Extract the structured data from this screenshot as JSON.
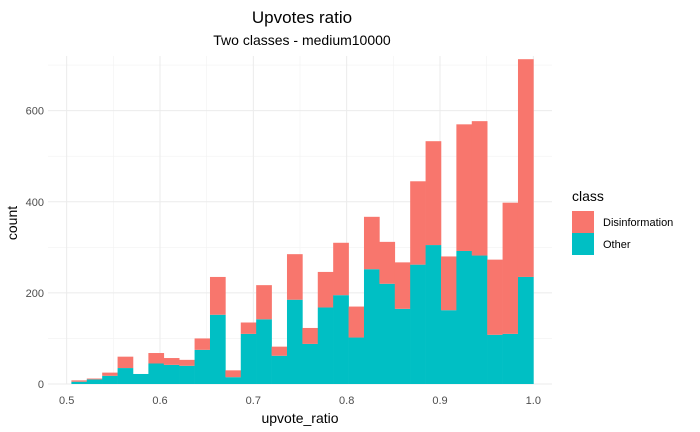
{
  "chart_data": {
    "type": "bar",
    "stacked": true,
    "title": "Upvotes ratio",
    "subtitle": "Two classes - medium10000",
    "xlabel": "upvote_ratio",
    "ylabel": "count",
    "xlim": [
      0.48,
      1.02
    ],
    "ylim": [
      0,
      720
    ],
    "grid": true,
    "legend_position": "right",
    "x_ticks": [
      "0.5",
      "0.6",
      "0.7",
      "0.8",
      "0.9",
      "1.0"
    ],
    "y_ticks": [
      "0",
      "200",
      "400",
      "600"
    ],
    "bin_width": 0.0165,
    "bin_centers": [
      0.5133,
      0.5298,
      0.5463,
      0.5628,
      0.5793,
      0.5958,
      0.6123,
      0.6288,
      0.6453,
      0.6618,
      0.6783,
      0.6948,
      0.7113,
      0.7278,
      0.7443,
      0.7608,
      0.7773,
      0.7938,
      0.8103,
      0.8268,
      0.8433,
      0.8598,
      0.8763,
      0.8928,
      0.9093,
      0.9258,
      0.9423,
      0.9588,
      0.9753,
      0.9918
    ],
    "legend_title": "class",
    "series": [
      {
        "name": "Other",
        "color": "#00BFC4",
        "values": [
          5,
          10,
          18,
          35,
          22,
          45,
          42,
          40,
          75,
          152,
          15,
          110,
          142,
          62,
          185,
          88,
          168,
          195,
          102,
          252,
          220,
          165,
          262,
          305,
          162,
          292,
          282,
          108,
          110,
          235
        ]
      },
      {
        "name": "Disinformation",
        "color": "#F8766D",
        "values": [
          3,
          2,
          7,
          25,
          0,
          23,
          15,
          13,
          25,
          83,
          15,
          25,
          75,
          20,
          100,
          35,
          78,
          115,
          68,
          115,
          92,
          102,
          183,
          228,
          118,
          278,
          295,
          165,
          288,
          478
        ]
      }
    ]
  }
}
